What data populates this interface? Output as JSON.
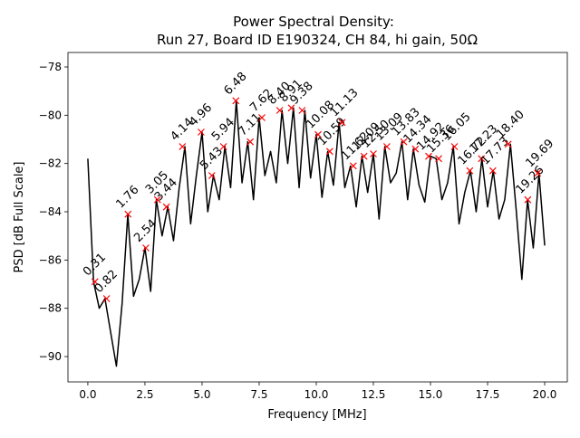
{
  "chart_data": {
    "type": "line",
    "title": "Power Spectral Density:",
    "subtitle": "Run 27, Board ID E190324, CH 84, hi gain, 50Ω",
    "xlabel": "Frequency [MHz]",
    "ylabel": "PSD [dB Full Scale]",
    "xlim": [
      -0.87,
      20.99
    ],
    "ylim": [
      -91.05,
      -77.4
    ],
    "xticks": [
      {
        "value": 0,
        "label": "0.0"
      },
      2.5,
      {
        "value": 5,
        "label": "5.0"
      },
      7.5,
      {
        "value": 10,
        "label": "10.0"
      },
      12.5,
      {
        "value": 15,
        "label": "15.0"
      },
      17.5,
      {
        "value": 20,
        "label": "20.0"
      }
    ],
    "yticks": [
      {
        "value": -90,
        "label": "−90"
      },
      {
        "value": -88,
        "label": "−88"
      },
      {
        "value": -86,
        "label": "−86"
      },
      {
        "value": -84,
        "label": "−84"
      },
      {
        "value": -82,
        "label": "−82"
      },
      {
        "value": -80,
        "label": "−80"
      },
      {
        "value": -78,
        "label": "−78"
      }
    ],
    "grid": false,
    "x": [
      0.0,
      0.25,
      0.5,
      0.75,
      1.0,
      1.25,
      1.5,
      1.75,
      2.0,
      2.25,
      2.5,
      2.75,
      3.0,
      3.25,
      3.5,
      3.75,
      4.0,
      4.25,
      4.5,
      4.75,
      5.0,
      5.25,
      5.5,
      5.75,
      6.0,
      6.25,
      6.5,
      6.75,
      7.0,
      7.25,
      7.5,
      7.75,
      8.0,
      8.25,
      8.5,
      8.75,
      9.0,
      9.25,
      9.5,
      9.75,
      10.0,
      10.25,
      10.5,
      10.75,
      11.0,
      11.25,
      11.5,
      11.75,
      12.0,
      12.25,
      12.5,
      12.75,
      13.0,
      13.25,
      13.5,
      13.75,
      14.0,
      14.25,
      14.5,
      14.75,
      15.0,
      15.25,
      15.5,
      15.75,
      16.0,
      16.25,
      16.5,
      16.75,
      17.0,
      17.25,
      17.5,
      17.75,
      18.0,
      18.25,
      18.5,
      18.75,
      19.0,
      19.25,
      19.5,
      19.75,
      20.0
    ],
    "series": [
      {
        "color": "#000000",
        "values": [
          -81.8,
          -86.9,
          -88.0,
          -87.6,
          -89.0,
          -90.4,
          -87.8,
          -84.1,
          -87.5,
          -86.8,
          -85.5,
          -87.3,
          -83.5,
          -85.0,
          -83.8,
          -85.2,
          -83.0,
          -81.3,
          -84.5,
          -82.5,
          -80.7,
          -84.0,
          -82.5,
          -83.5,
          -81.3,
          -83.0,
          -79.4,
          -82.8,
          -81.1,
          -83.5,
          -80.1,
          -82.5,
          -81.5,
          -82.8,
          -79.8,
          -82.0,
          -79.7,
          -83.0,
          -79.8,
          -82.6,
          -80.8,
          -83.4,
          -81.5,
          -82.9,
          -80.3,
          -83.0,
          -82.1,
          -83.8,
          -81.7,
          -83.2,
          -81.6,
          -84.3,
          -81.3,
          -82.8,
          -82.4,
          -81.1,
          -83.5,
          -81.4,
          -82.9,
          -83.6,
          -81.7,
          -81.8,
          -83.5,
          -82.8,
          -81.3,
          -84.5,
          -83.2,
          -82.3,
          -84.0,
          -81.8,
          -83.8,
          -82.3,
          -84.3,
          -83.5,
          -81.2,
          -83.9,
          -86.8,
          -83.5,
          -85.5,
          -82.4,
          -85.4
        ]
      }
    ],
    "peaks": {
      "color": "#ff0000",
      "x": [
        0.31,
        0.82,
        1.76,
        2.54,
        3.05,
        3.44,
        4.14,
        4.96,
        5.43,
        5.94,
        6.48,
        7.11,
        7.62,
        8.4,
        8.91,
        9.38,
        10.08,
        10.59,
        11.13,
        11.62,
        12.09,
        12.5,
        13.09,
        13.83,
        14.34,
        14.92,
        15.36,
        16.05,
        16.72,
        17.23,
        17.73,
        18.4,
        19.26,
        19.69
      ],
      "y": [
        -86.9,
        -87.6,
        -84.1,
        -85.5,
        -83.5,
        -83.8,
        -81.3,
        -80.7,
        -82.5,
        -81.3,
        -79.4,
        -81.1,
        -80.1,
        -79.8,
        -79.7,
        -79.8,
        -80.8,
        -81.5,
        -80.3,
        -82.1,
        -81.7,
        -81.6,
        -81.3,
        -81.1,
        -81.4,
        -81.7,
        -81.8,
        -81.3,
        -82.3,
        -81.8,
        -82.3,
        -81.2,
        -83.5,
        -82.4
      ],
      "labels": [
        "0.31",
        "0.82",
        "1.76",
        "2.54",
        "3.05",
        "3.44",
        "4.14",
        "4.96",
        "5.43",
        "5.94",
        "6.48",
        "7.11",
        "7.62",
        "8.40",
        "8.91",
        "9.38",
        "10.08",
        "10.59",
        "11.13",
        "11.62",
        "12.09",
        "12.50",
        "13.09",
        "13.83",
        "14.34",
        "14.92",
        "15.36",
        "16.05",
        "16.72",
        "17.23",
        "17.73",
        "18.40",
        "19.26",
        "19.69"
      ]
    }
  }
}
